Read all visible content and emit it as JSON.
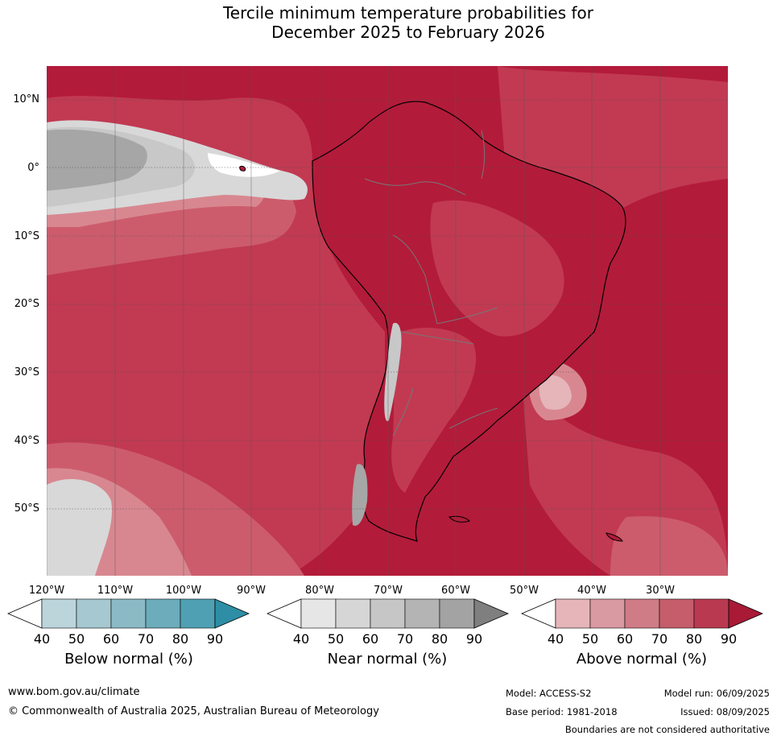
{
  "title": {
    "line1": "Tercile minimum temperature probabilities for",
    "line2": "December 2025 to February 2026"
  },
  "map": {
    "latitude_labels": [
      "10°N",
      "0°",
      "10°S",
      "20°S",
      "30°S",
      "40°S",
      "50°S"
    ],
    "longitude_labels": [
      "120°W",
      "110°W",
      "100°W",
      "90°W",
      "80°W",
      "70°W",
      "60°W",
      "50°W",
      "40°W",
      "30°W"
    ],
    "colors": {
      "above_90": "#b31b3a",
      "above_80": "#c13a52",
      "above_70": "#cc5c6c",
      "above_60": "#d88790",
      "above_50": "#e5b5ba",
      "near_60": "#c8c8c8",
      "near_80": "#a6a6a6",
      "near_50": "#d8d8d8",
      "white": "#ffffff"
    }
  },
  "colorbars": [
    {
      "label": "Below normal (%)",
      "ticks": [
        "40",
        "50",
        "60",
        "70",
        "80",
        "90"
      ],
      "colors": [
        "#bcd5db",
        "#a6c8d0",
        "#8bbac5",
        "#6dacbb",
        "#4fa0b3",
        "#2e8ea5"
      ]
    },
    {
      "label": "Near normal (%)",
      "ticks": [
        "40",
        "50",
        "60",
        "70",
        "80",
        "90"
      ],
      "colors": [
        "#e6e6e6",
        "#d6d6d6",
        "#c6c6c6",
        "#b4b4b4",
        "#a3a3a3",
        "#7f7f7f"
      ]
    },
    {
      "label": "Above normal (%)",
      "ticks": [
        "40",
        "50",
        "60",
        "70",
        "80",
        "90"
      ],
      "colors": [
        "#e5b5ba",
        "#d99aa2",
        "#cf7c86",
        "#c55d6b",
        "#b93a50",
        "#a81a36"
      ]
    }
  ],
  "footer": {
    "website": "www.bom.gov.au/climate",
    "copyright": "© Commonwealth of Australia 2025, Australian Bureau of Meteorology",
    "model": "Model: ACCESS-S2",
    "base_period": "Base period: 1981-2018",
    "model_run": "Model run: 06/09/2025",
    "issued": "Issued: 08/09/2025",
    "disclaimer": "Boundaries are not considered authoritative"
  }
}
